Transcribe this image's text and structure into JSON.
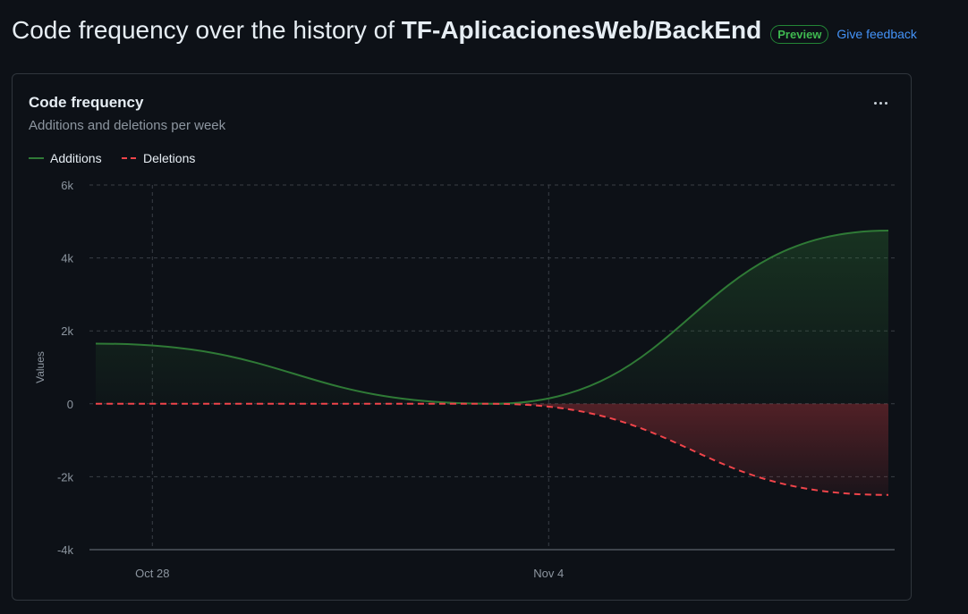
{
  "header": {
    "title_prefix": "Code frequency over the history of ",
    "repo": "TF-AplicacionesWeb/BackEnd",
    "badge": "Preview",
    "feedback_link": "Give feedback"
  },
  "card": {
    "more_icon": "kebab-horizontal-icon"
  },
  "colors": {
    "additions": "#2f7a36",
    "deletions": "#f0444a",
    "grid": "#3a3f46",
    "axis_text": "#8d96a0"
  },
  "chart_data": {
    "type": "area",
    "title": "Code frequency",
    "subtitle": "Additions and deletions per week",
    "ylabel": "Values",
    "ylim": [
      -4000,
      6000
    ],
    "yticks": [
      6000,
      4000,
      2000,
      0,
      -2000,
      -4000
    ],
    "ytick_labels": [
      "6k",
      "4k",
      "2k",
      "0",
      "-2k",
      "-4k"
    ],
    "x": [
      "2023-10-27",
      "2023-11-03",
      "2023-11-10"
    ],
    "xticks": [
      "2023-10-28",
      "2023-11-04"
    ],
    "xtick_labels": [
      "Oct 28",
      "Nov 4"
    ],
    "series": [
      {
        "name": "Additions",
        "values": [
          1650,
          0,
          4750
        ]
      },
      {
        "name": "Deletions",
        "values": [
          0,
          0,
          -2500
        ]
      }
    ],
    "legend": "top-left",
    "grid": true
  }
}
